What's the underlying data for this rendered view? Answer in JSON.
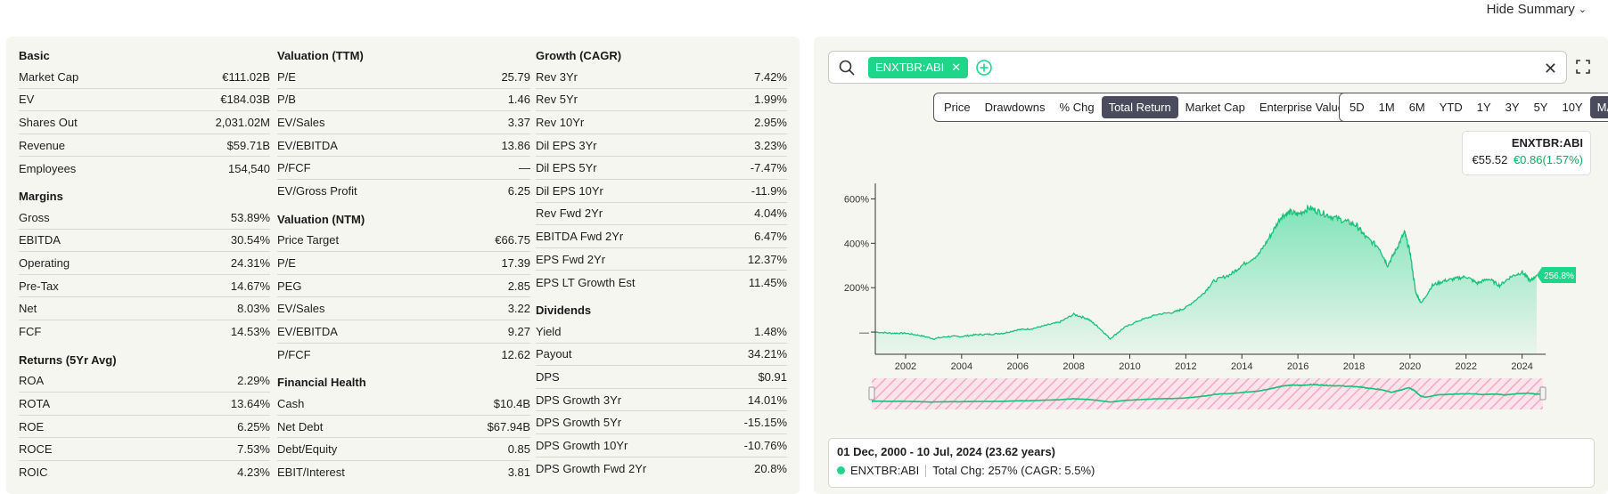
{
  "header": {
    "hide_summary": "Hide Summary",
    "chevron_icon": "chevron-down-icon"
  },
  "columns": [
    [
      {
        "title": "Basic",
        "rows": [
          {
            "label": "Market Cap",
            "value": "€111.02B"
          },
          {
            "label": "EV",
            "value": "€184.03B"
          },
          {
            "label": "Shares Out",
            "value": "2,031.02M"
          },
          {
            "label": "Revenue",
            "value": "$59.71B"
          },
          {
            "label": "Employees",
            "value": "154,540"
          }
        ]
      },
      {
        "title": "Margins",
        "rows": [
          {
            "label": "Gross",
            "value": "53.89%"
          },
          {
            "label": "EBITDA",
            "value": "30.54%"
          },
          {
            "label": "Operating",
            "value": "24.31%"
          },
          {
            "label": "Pre-Tax",
            "value": "14.67%"
          },
          {
            "label": "Net",
            "value": "8.03%"
          },
          {
            "label": "FCF",
            "value": "14.53%"
          }
        ]
      },
      {
        "title": "Returns (5Yr Avg)",
        "rows": [
          {
            "label": "ROA",
            "value": "2.29%"
          },
          {
            "label": "ROTA",
            "value": "13.64%"
          },
          {
            "label": "ROE",
            "value": "6.25%"
          },
          {
            "label": "ROCE",
            "value": "7.53%"
          },
          {
            "label": "ROIC",
            "value": "4.23%"
          }
        ]
      }
    ],
    [
      {
        "title": "Valuation (TTM)",
        "rows": [
          {
            "label": "P/E",
            "value": "25.79"
          },
          {
            "label": "P/B",
            "value": "1.46"
          },
          {
            "label": "EV/Sales",
            "value": "3.37"
          },
          {
            "label": "EV/EBITDA",
            "value": "13.86"
          },
          {
            "label": "P/FCF",
            "value": "—"
          },
          {
            "label": "EV/Gross Profit",
            "value": "6.25"
          }
        ]
      },
      {
        "title": "Valuation (NTM)",
        "rows": [
          {
            "label": "Price Target",
            "value": "€66.75"
          },
          {
            "label": "P/E",
            "value": "17.39"
          },
          {
            "label": "PEG",
            "value": "2.85"
          },
          {
            "label": "EV/Sales",
            "value": "3.22"
          },
          {
            "label": "EV/EBITDA",
            "value": "9.27"
          },
          {
            "label": "P/FCF",
            "value": "12.62"
          }
        ]
      },
      {
        "title": "Financial Health",
        "rows": [
          {
            "label": "Cash",
            "value": "$10.4B"
          },
          {
            "label": "Net Debt",
            "value": "$67.94B"
          },
          {
            "label": "Debt/Equity",
            "value": "0.85"
          },
          {
            "label": "EBIT/Interest",
            "value": "3.81"
          }
        ]
      }
    ],
    [
      {
        "title": "Growth (CAGR)",
        "rows": [
          {
            "label": "Rev 3Yr",
            "value": "7.42%"
          },
          {
            "label": "Rev 5Yr",
            "value": "1.99%"
          },
          {
            "label": "Rev 10Yr",
            "value": "2.95%"
          },
          {
            "label": "Dil EPS 3Yr",
            "value": "3.23%"
          },
          {
            "label": "Dil EPS 5Yr",
            "value": "-7.47%"
          },
          {
            "label": "Dil EPS 10Yr",
            "value": "-11.9%"
          },
          {
            "label": "Rev Fwd 2Yr",
            "value": "4.04%"
          },
          {
            "label": "EBITDA Fwd 2Yr",
            "value": "6.47%"
          },
          {
            "label": "EPS Fwd 2Yr",
            "value": "12.37%"
          },
          {
            "label": "EPS LT Growth Est",
            "value": "11.45%"
          }
        ]
      },
      {
        "title": "Dividends",
        "rows": [
          {
            "label": "Yield",
            "value": "1.48%"
          },
          {
            "label": "Payout",
            "value": "34.21%"
          },
          {
            "label": "DPS",
            "value": "$0.91"
          },
          {
            "label": "DPS Growth 3Yr",
            "value": "14.01%"
          },
          {
            "label": "DPS Growth 5Yr",
            "value": "-15.15%"
          },
          {
            "label": "DPS Growth 10Yr",
            "value": "-10.76%"
          },
          {
            "label": "DPS Growth Fwd 2Yr",
            "value": "20.8%"
          }
        ]
      }
    ]
  ],
  "chart_panel": {
    "search": {
      "ticker": "ENXTBR:ABI",
      "placeholder": ""
    },
    "metric_tabs": [
      "Price",
      "Drawdowns",
      "% Chg",
      "Total Return",
      "Market Cap",
      "Enterprise Value"
    ],
    "metric_active": "Total Return",
    "range_tabs": [
      "5D",
      "1M",
      "6M",
      "YTD",
      "1Y",
      "3Y",
      "5Y",
      "10Y",
      "MAX"
    ],
    "range_active": "MAX",
    "legend": {
      "ticker": "ENXTBR:ABI",
      "price": "€55.52",
      "change": "€0.86(1.57%)"
    },
    "summary": {
      "range": "01 Dec, 2000 - 10 Jul, 2024 (23.62 years)",
      "ticker": "ENXTBR:ABI",
      "total": "Total Chg: 257% (CAGR: 5.5%)"
    },
    "colors": {
      "accent": "#1fd58a",
      "line": "#16c27a",
      "active_tab": "#4b4b5e",
      "positive": "#11a866"
    }
  },
  "chart_data": {
    "type": "area",
    "title": "",
    "xlabel": "",
    "ylabel": "",
    "x_ticks": [
      "2002",
      "2004",
      "2006",
      "2008",
      "2010",
      "2012",
      "2014",
      "2016",
      "2018",
      "2020",
      "2022",
      "2024"
    ],
    "y_ticks": [
      "600%",
      "400%",
      "200%",
      "—"
    ],
    "end_label": "256.8%",
    "xlim": [
      2000.92,
      2024.52
    ],
    "ylim": [
      -100,
      650
    ],
    "series": [
      {
        "values_x": [
          2000.92,
          2001.5,
          2002,
          2002.5,
          2003,
          2003.5,
          2004,
          2004.5,
          2005,
          2005.5,
          2006,
          2006.5,
          2007,
          2007.5,
          2008,
          2008.5,
          2008.9,
          2009.3,
          2009.8,
          2010.3,
          2011,
          2011.6,
          2012,
          2012.6,
          2013,
          2013.6,
          2014,
          2014.6,
          2015,
          2015.4,
          2015.7,
          2016,
          2016.4,
          2016.8,
          2017.2,
          2017.7,
          2018.1,
          2018.4,
          2018.9,
          2019.2,
          2019.5,
          2019.8,
          2020.0,
          2020.2,
          2020.4,
          2020.8,
          2021.2,
          2021.6,
          2022.0,
          2022.4,
          2022.8,
          2023.2,
          2023.6,
          2024.0,
          2024.3,
          2024.52
        ],
        "values": [
          0,
          -5,
          -5,
          -15,
          -30,
          -20,
          -20,
          -12,
          -10,
          -5,
          10,
          15,
          30,
          45,
          80,
          60,
          20,
          -30,
          20,
          50,
          80,
          90,
          110,
          170,
          230,
          260,
          300,
          350,
          430,
          520,
          540,
          530,
          560,
          540,
          520,
          500,
          480,
          430,
          380,
          300,
          370,
          450,
          360,
          180,
          130,
          210,
          230,
          240,
          250,
          220,
          240,
          210,
          250,
          270,
          230,
          257
        ]
      }
    ]
  }
}
